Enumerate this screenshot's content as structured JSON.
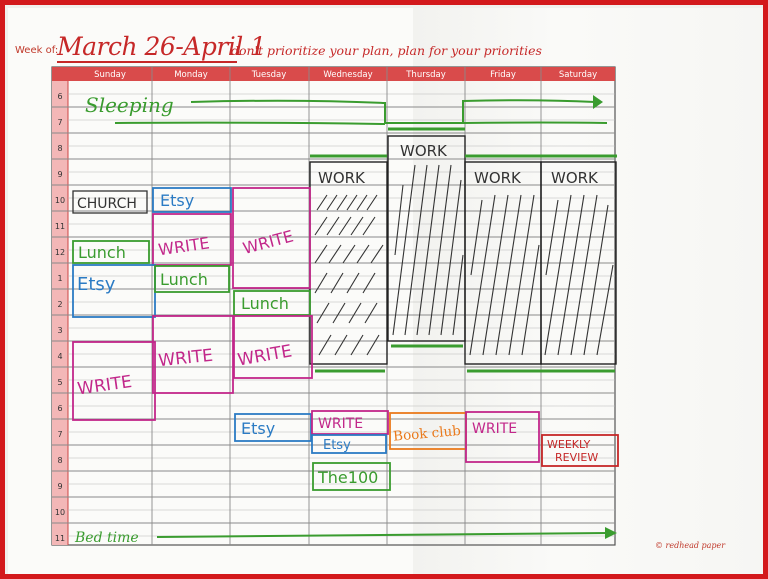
{
  "header": {
    "week_of_label": "Week of:",
    "week_dates": "March 26-April 1",
    "motto": "don't prioritize your plan, plan for your priorities"
  },
  "days": [
    "Sunday",
    "Monday",
    "Tuesday",
    "Wednesday",
    "Thursday",
    "Friday",
    "Saturday"
  ],
  "hours": [
    "6",
    "7",
    "8",
    "9",
    "10",
    "11",
    "12",
    "1",
    "2",
    "3",
    "4",
    "5",
    "6",
    "7",
    "8",
    "9",
    "10",
    "11"
  ],
  "entries": [
    {
      "label": "Sleeping",
      "color": "#3a9c2f"
    },
    {
      "label": "WORK",
      "color": "#333333"
    },
    {
      "label": "WORK",
      "color": "#333333"
    },
    {
      "label": "WORK",
      "color": "#333333"
    },
    {
      "label": "WORK",
      "color": "#333333"
    },
    {
      "label": "CHURCH",
      "color": "#333333"
    },
    {
      "label": "Etsy",
      "color": "#2b7bc4"
    },
    {
      "label": "WRITE",
      "color": "#c2278a"
    },
    {
      "label": "WRITE",
      "color": "#c2278a"
    },
    {
      "label": "Lunch",
      "color": "#3a9c2f"
    },
    {
      "label": "Etsy",
      "color": "#2b7bc4"
    },
    {
      "label": "Lunch",
      "color": "#3a9c2f"
    },
    {
      "label": "Lunch",
      "color": "#3a9c2f"
    },
    {
      "label": "WRITE",
      "color": "#c2278a"
    },
    {
      "label": "WRITE",
      "color": "#c2278a"
    },
    {
      "label": "WRITE",
      "color": "#c2278a"
    },
    {
      "label": "Etsy",
      "color": "#2b7bc4"
    },
    {
      "label": "WRITE",
      "color": "#c2278a"
    },
    {
      "label": "Etsy",
      "color": "#2b7bc4"
    },
    {
      "label": "Book club",
      "color": "#ea7a1c"
    },
    {
      "label": "WRITE",
      "color": "#c2278a"
    },
    {
      "label": "WEEKLY",
      "color": "#c62828"
    },
    {
      "label": "REVIEW",
      "color": "#c62828"
    },
    {
      "label": "The100",
      "color": "#3a9c2f"
    },
    {
      "label": "Bed time",
      "color": "#3a9c2f"
    }
  ],
  "footer": {
    "credit": "© redhead paper"
  },
  "colors": {
    "frame": "#d3191c",
    "header_bar": "#d94b4b",
    "grid": "#9a9a9a",
    "work": "#222222",
    "green": "#3a9c2f"
  }
}
